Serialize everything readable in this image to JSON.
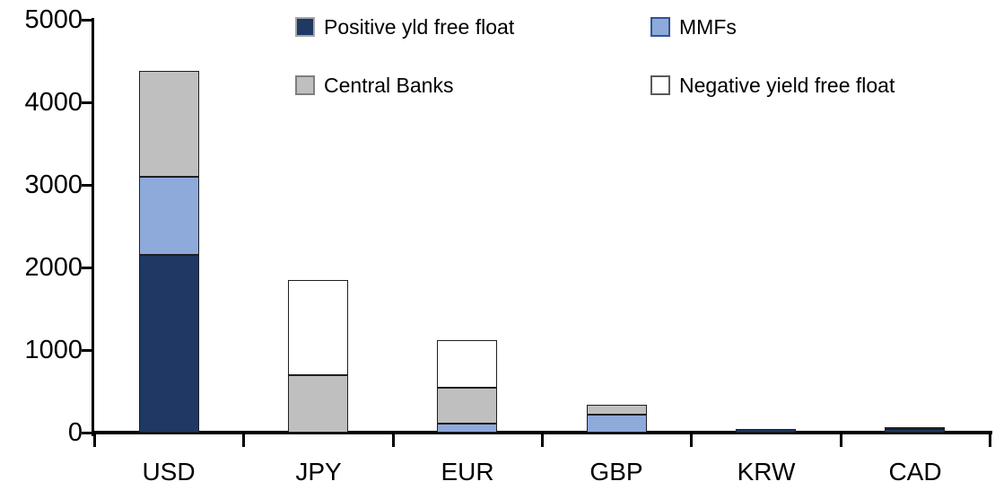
{
  "chart_data": {
    "type": "bar",
    "stacked": true,
    "title": "",
    "categories": [
      "USD",
      "JPY",
      "EUR",
      "GBP",
      "KRW",
      "CAD"
    ],
    "series": [
      {
        "name": "Positive yld free float",
        "color": "#1F3864",
        "swatch_border": "#A6A6A6",
        "values": [
          2150,
          0,
          0,
          0,
          40,
          40
        ]
      },
      {
        "name": "MMFs",
        "color": "#8EAADB",
        "swatch_border": "#2F5597",
        "values": [
          950,
          0,
          110,
          220,
          0,
          0
        ]
      },
      {
        "name": "Central Banks",
        "color": "#BFBFBF",
        "swatch_border": "#7F7F7F",
        "values": [
          1280,
          700,
          430,
          120,
          0,
          30
        ]
      },
      {
        "name": "Negative yield free float",
        "color": "#FFFFFF",
        "swatch_border": "#595959",
        "values": [
          0,
          1150,
          580,
          0,
          0,
          0
        ]
      }
    ],
    "ylim": [
      0,
      5000
    ],
    "yticks": [
      0,
      1000,
      2000,
      3000,
      4000,
      5000
    ],
    "ytick_labels": [
      "0",
      "1000",
      "2000",
      "3000",
      "4000",
      "5000"
    ],
    "xlabel": "",
    "ylabel": "",
    "grid": false,
    "legend_position": "top-inside",
    "axis_color": "#000000",
    "bar_border_color": "#1F1F1F",
    "background": "#FFFFFF"
  }
}
